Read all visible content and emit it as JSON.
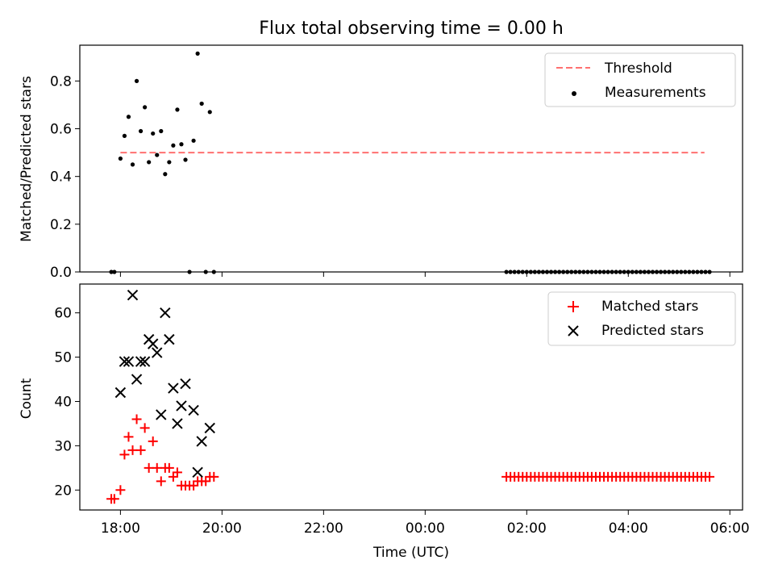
{
  "chart_data": [
    {
      "type": "scatter",
      "title": "Flux total observing time = 0.00 h",
      "ylabel": "Matched/Predicted stars",
      "xlabel": "",
      "xlim": [
        -0.8,
        12.25
      ],
      "ylim": [
        0,
        0.95
      ],
      "yticks": [
        0.0,
        0.2,
        0.4,
        0.6,
        0.8
      ],
      "ytick_labels": [
        "0.0",
        "0.2",
        "0.4",
        "0.6",
        "0.8"
      ],
      "xticks": [
        0,
        2,
        4,
        6,
        8,
        10,
        12
      ],
      "legend": {
        "position": "top-right",
        "entries": [
          "Threshold",
          "Measurements"
        ]
      },
      "threshold": {
        "name": "Threshold",
        "y": 0.5,
        "x": [
          0,
          11.5
        ],
        "color": "#ff7070",
        "style": "dashed"
      },
      "series": [
        {
          "name": "Measurements",
          "marker": "dot",
          "color": "#000000",
          "x": [
            -0.18,
            -0.12,
            0.0,
            0.08,
            0.16,
            0.24,
            0.32,
            0.4,
            0.48,
            0.56,
            0.64,
            0.72,
            0.8,
            0.88,
            0.96,
            1.04,
            1.12,
            1.2,
            1.28,
            1.36,
            1.44,
            1.52,
            1.6,
            1.68,
            1.76,
            1.84,
            7.6,
            7.68,
            7.76,
            7.84,
            7.92,
            8.0,
            8.08,
            8.16,
            8.24,
            8.32,
            8.4,
            8.48,
            8.56,
            8.64,
            8.72,
            8.8,
            8.88,
            8.96,
            9.04,
            9.12,
            9.2,
            9.28,
            9.36,
            9.44,
            9.52,
            9.6,
            9.68,
            9.76,
            9.84,
            9.92,
            10.0,
            10.08,
            10.16,
            10.24,
            10.32,
            10.4,
            10.48,
            10.56,
            10.64,
            10.72,
            10.8,
            10.88,
            10.96,
            11.04,
            11.12,
            11.2,
            11.28,
            11.36,
            11.44,
            11.52,
            11.6
          ],
          "y": [
            0,
            0,
            0.475,
            0.57,
            0.65,
            0.45,
            0.8,
            0.59,
            0.69,
            0.46,
            0.58,
            0.49,
            0.59,
            0.41,
            0.46,
            0.53,
            0.68,
            0.535,
            0.47,
            0,
            0.55,
            0.915,
            0.705,
            0,
            0.67,
            0,
            0,
            0,
            0,
            0,
            0,
            0,
            0,
            0,
            0,
            0,
            0,
            0,
            0,
            0,
            0,
            0,
            0,
            0,
            0,
            0,
            0,
            0,
            0,
            0,
            0,
            0,
            0,
            0,
            0,
            0,
            0,
            0,
            0,
            0,
            0,
            0,
            0,
            0,
            0,
            0,
            0,
            0,
            0,
            0,
            0,
            0,
            0,
            0,
            0,
            0,
            0
          ]
        }
      ]
    },
    {
      "type": "scatter",
      "title": "",
      "ylabel": "Count",
      "xlabel": "Time (UTC)",
      "xlim": [
        -0.8,
        12.25
      ],
      "ylim": [
        15.5,
        66.5
      ],
      "yticks": [
        20,
        30,
        40,
        50,
        60
      ],
      "ytick_labels": [
        "20",
        "30",
        "40",
        "50",
        "60"
      ],
      "xticks": [
        0,
        2,
        4,
        6,
        8,
        10,
        12
      ],
      "xtick_labels": [
        "18:00",
        "20:00",
        "22:00",
        "00:00",
        "02:00",
        "04:00",
        "06:00"
      ],
      "legend": {
        "position": "top-right",
        "entries": [
          "Matched stars",
          "Predicted stars"
        ]
      },
      "series": [
        {
          "name": "Matched stars",
          "marker": "plus",
          "color": "#ff0000",
          "x": [
            -0.18,
            -0.12,
            0.0,
            0.08,
            0.16,
            0.24,
            0.32,
            0.4,
            0.48,
            0.56,
            0.64,
            0.72,
            0.8,
            0.88,
            0.96,
            1.04,
            1.12,
            1.2,
            1.28,
            1.36,
            1.44,
            1.52,
            1.6,
            1.68,
            1.76,
            1.84,
            7.6,
            7.68,
            7.76,
            7.84,
            7.92,
            8.0,
            8.08,
            8.16,
            8.24,
            8.32,
            8.4,
            8.48,
            8.56,
            8.64,
            8.72,
            8.8,
            8.88,
            8.96,
            9.04,
            9.12,
            9.2,
            9.28,
            9.36,
            9.44,
            9.52,
            9.6,
            9.68,
            9.76,
            9.84,
            9.92,
            10.0,
            10.08,
            10.16,
            10.24,
            10.32,
            10.4,
            10.48,
            10.56,
            10.64,
            10.72,
            10.8,
            10.88,
            10.96,
            11.04,
            11.12,
            11.2,
            11.28,
            11.36,
            11.44,
            11.52,
            11.6
          ],
          "y": [
            18,
            18,
            20,
            28,
            32,
            29,
            36,
            29,
            34,
            25,
            31,
            25,
            22,
            25,
            25,
            23,
            24,
            21,
            21,
            21,
            21,
            22,
            22,
            22,
            23,
            23,
            23,
            23,
            23,
            23,
            23,
            23,
            23,
            23,
            23,
            23,
            23,
            23,
            23,
            23,
            23,
            23,
            23,
            23,
            23,
            23,
            23,
            23,
            23,
            23,
            23,
            23,
            23,
            23,
            23,
            23,
            23,
            23,
            23,
            23,
            23,
            23,
            23,
            23,
            23,
            23,
            23,
            23,
            23,
            23,
            23,
            23,
            23,
            23,
            23,
            23,
            23
          ]
        },
        {
          "name": "Predicted stars",
          "marker": "x",
          "color": "#000000",
          "x": [
            0.0,
            0.08,
            0.16,
            0.24,
            0.32,
            0.4,
            0.48,
            0.56,
            0.64,
            0.72,
            0.8,
            0.88,
            0.96,
            1.04,
            1.12,
            1.2,
            1.28,
            1.44,
            1.52,
            1.6,
            1.76
          ],
          "y": [
            42,
            49,
            49,
            64,
            45,
            49,
            49,
            54,
            53,
            51,
            37,
            60,
            54,
            43,
            35,
            39,
            44,
            38,
            24,
            31,
            34
          ]
        }
      ]
    }
  ]
}
